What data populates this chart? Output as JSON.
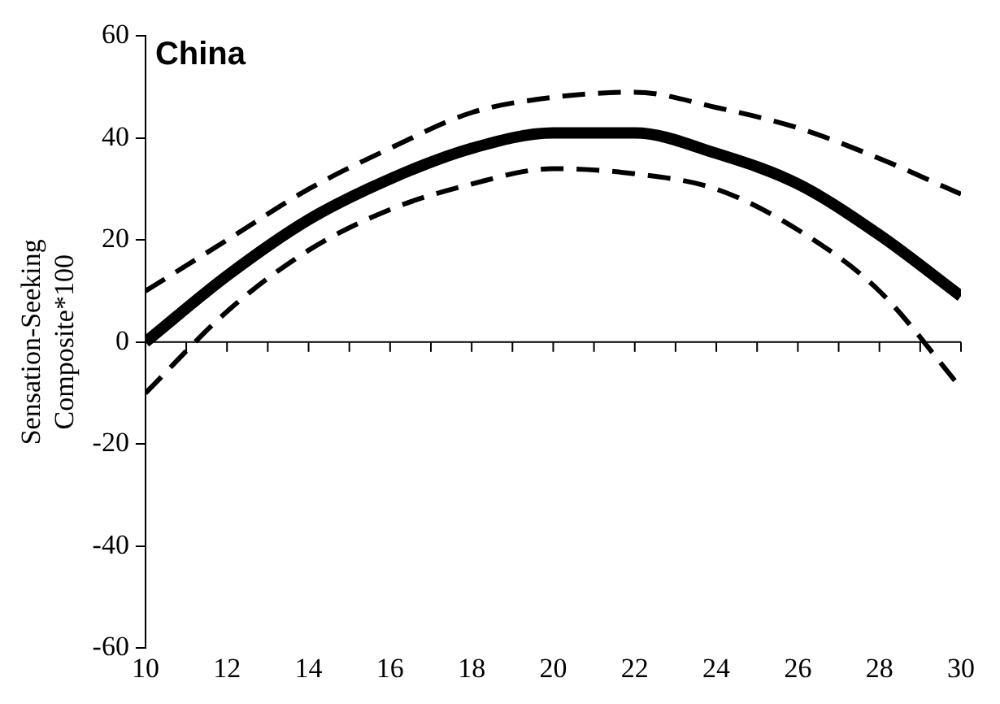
{
  "chart_data": {
    "type": "line",
    "title": "China",
    "ylabel": "Sensation-Seeking Composite*100",
    "x": [
      10,
      12,
      14,
      16,
      18,
      20,
      22,
      24,
      26,
      28,
      30
    ],
    "series": [
      {
        "color": "#000000",
        "line_style": "solid",
        "values": [
          0,
          13,
          24,
          32,
          38,
          41,
          41,
          37,
          31,
          21,
          9
        ]
      },
      {
        "color": "#000000",
        "line_style": "dashed",
        "values": [
          10,
          20,
          30,
          38,
          45,
          48,
          49,
          46,
          42,
          36,
          29
        ]
      },
      {
        "color": "#000000",
        "line_style": "dashed",
        "values": [
          -10,
          6,
          18,
          26,
          31,
          34,
          33,
          30,
          22,
          10,
          -9
        ]
      }
    ],
    "xlim": [
      10,
      30
    ],
    "xticks": [
      10,
      12,
      14,
      16,
      18,
      20,
      22,
      24,
      26,
      28,
      30
    ],
    "ylim": [
      -60,
      60
    ],
    "yticks": [
      -60,
      -40,
      -20,
      0,
      20,
      40,
      60
    ],
    "ref_lines": [
      {
        "axis": "y",
        "value": 0,
        "color": "#000000"
      }
    ],
    "grid": false,
    "legend": false,
    "marker": "none"
  }
}
